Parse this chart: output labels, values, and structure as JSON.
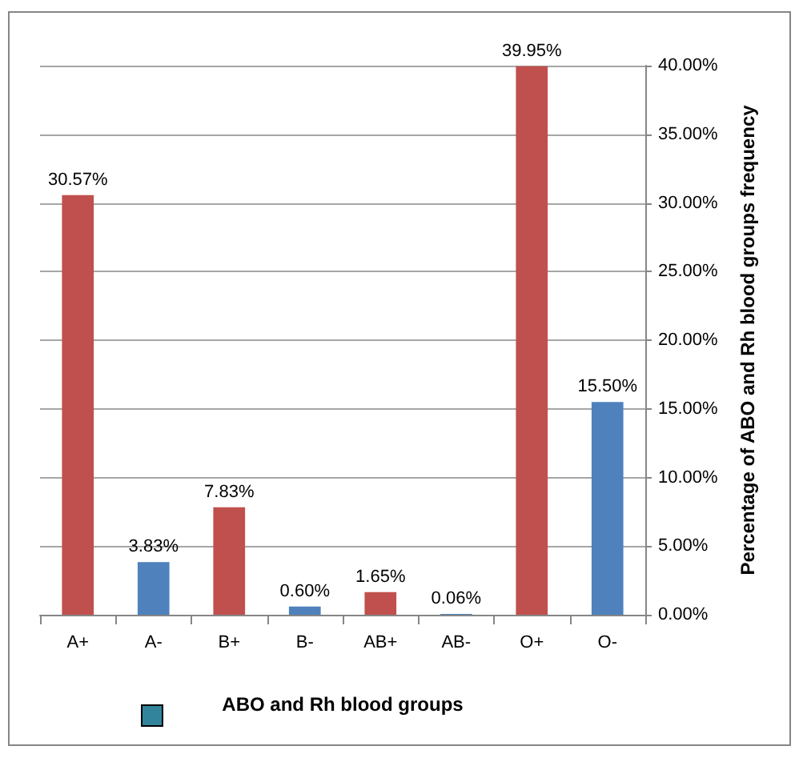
{
  "chart_data": {
    "type": "bar",
    "xlabel": "ABO and Rh blood groups",
    "ylabel": "Percentage of ABO and Rh blood groups frequency",
    "categories": [
      "A+",
      "A-",
      "B+",
      "B-",
      "AB+",
      "AB-",
      "O+",
      "O-"
    ],
    "values": [
      30.57,
      3.83,
      7.83,
      0.6,
      1.65,
      0.06,
      39.95,
      15.5
    ],
    "colors": [
      "#c0504d",
      "#4f81bd",
      "#c0504d",
      "#4f81bd",
      "#c0504d",
      "#4f81bd",
      "#c0504d",
      "#4f81bd"
    ],
    "value_labels": [
      "30.57%",
      "3.83%",
      "7.83%",
      "0.60%",
      "1.65%",
      "0.06%",
      "39.95%",
      "15.50%"
    ],
    "ylim": [
      0,
      40
    ],
    "yticks": [
      {
        "value": 0,
        "label": "0.00%"
      },
      {
        "value": 5,
        "label": "5.00%"
      },
      {
        "value": 10,
        "label": "10.00%"
      },
      {
        "value": 15,
        "label": "15.00%"
      },
      {
        "value": 20,
        "label": "20.00%"
      },
      {
        "value": 25,
        "label": "25.00%"
      },
      {
        "value": 30,
        "label": "30.00%"
      },
      {
        "value": 35,
        "label": "35.00%"
      },
      {
        "value": 40,
        "label": "40.00%"
      }
    ],
    "grid": "y"
  }
}
